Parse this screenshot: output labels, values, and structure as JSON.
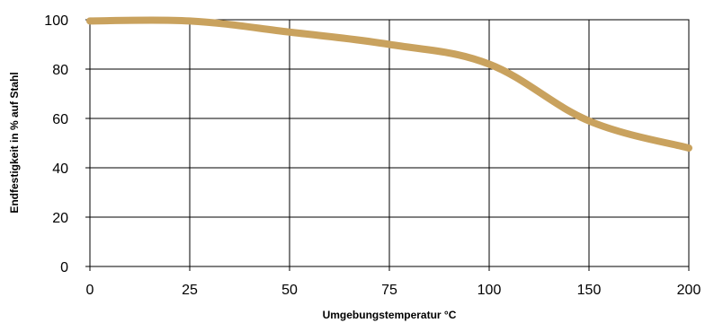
{
  "chart_data": {
    "type": "line",
    "xlabel": "Umgebungstemperatur °C",
    "ylabel": "Endfestigkeit in % auf Stahl",
    "x_categories": [
      "0",
      "25",
      "50",
      "75",
      "100",
      "150",
      "200"
    ],
    "y_ticks": [
      "0",
      "20",
      "40",
      "60",
      "80",
      "100"
    ],
    "ylim": [
      0,
      100
    ],
    "grid": true,
    "series": [
      {
        "color": "#c9a25e",
        "points": [
          {
            "x": "0",
            "y": 99.5
          },
          {
            "x": "25",
            "y": 99.5
          },
          {
            "x": "50",
            "y": 95
          },
          {
            "x": "75",
            "y": 90
          },
          {
            "x": "100",
            "y": 82
          },
          {
            "x": "150",
            "y": 59
          },
          {
            "x": "200",
            "y": 48
          }
        ],
        "interpolation": "smooth"
      }
    ]
  }
}
